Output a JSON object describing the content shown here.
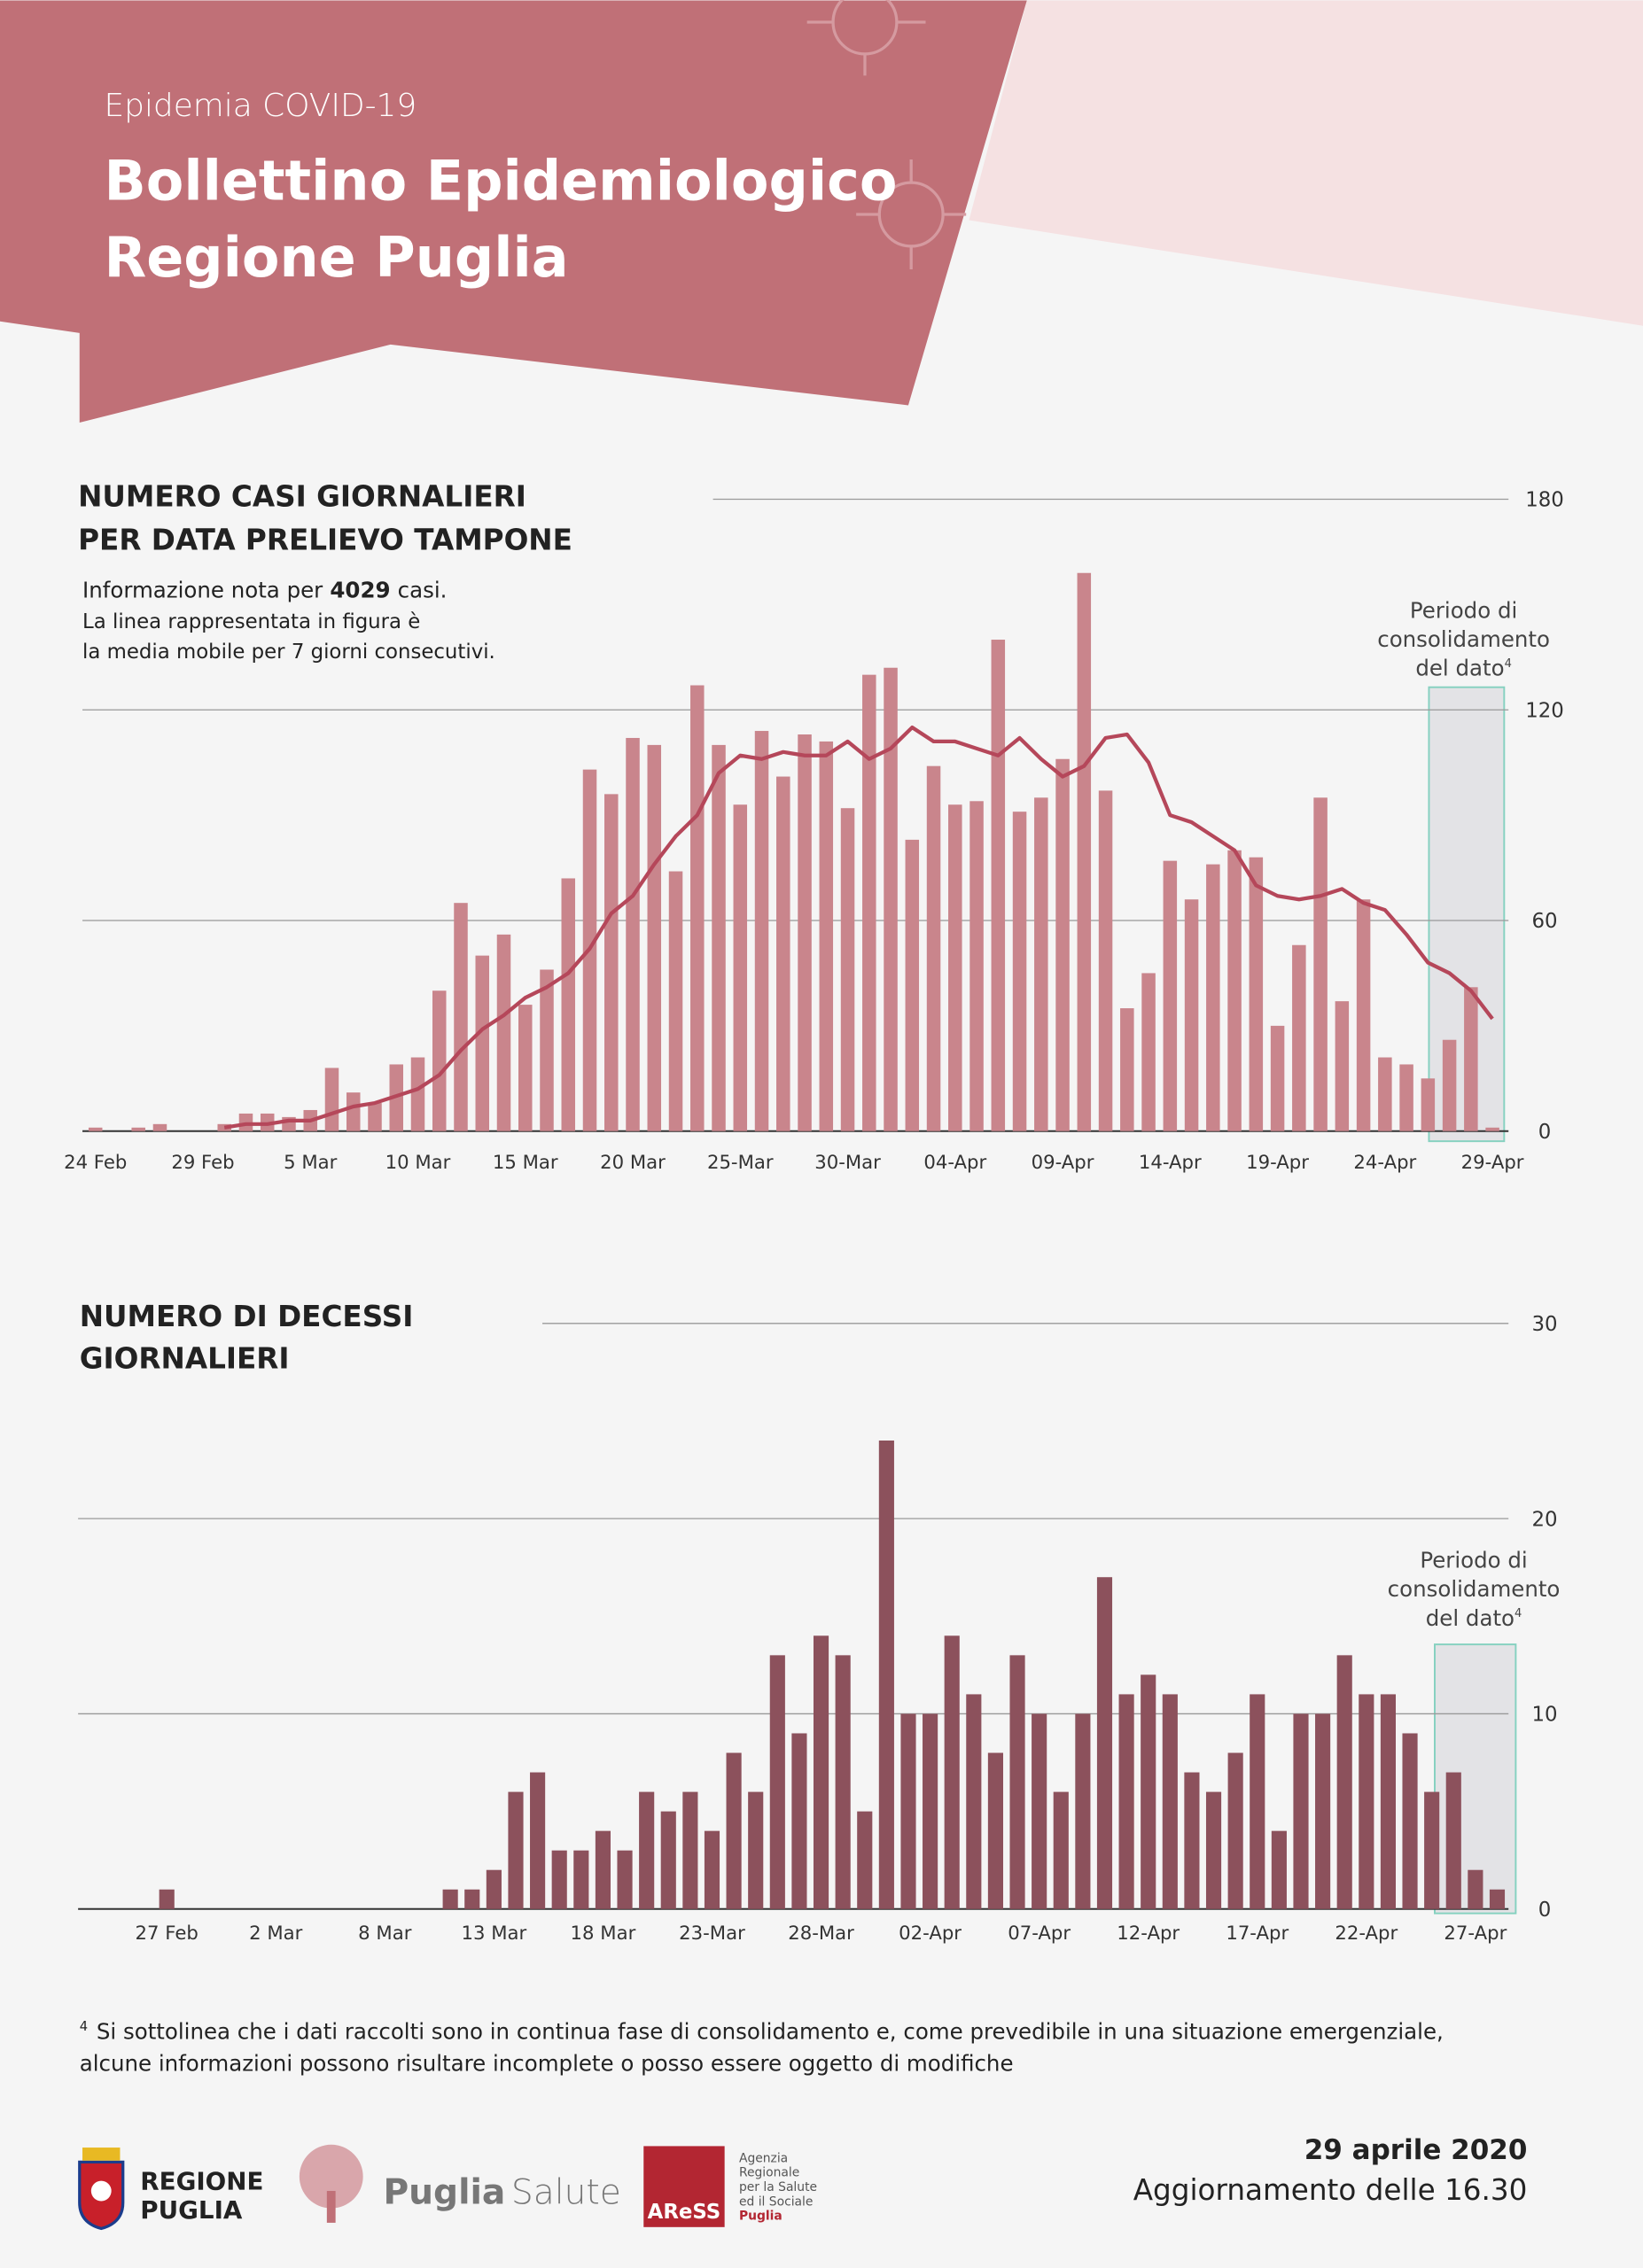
{
  "header": {
    "kicker": "Epidemia COVID-19",
    "title_lines": [
      "Bollettino Epidemiologico",
      "Regione Puglia"
    ]
  },
  "chart_data": [
    {
      "type": "bar",
      "title": [
        "NUMERO CASI GIORNALIERI",
        "PER DATA PRELIEVO TAMPONE"
      ],
      "note": {
        "prefix": "Informazione nota per",
        "count": 4029,
        "suffix": "casi.",
        "lines": [
          "La linea rappresentata in figura è",
          "la media mobile per 7 giorni consecutivi."
        ]
      },
      "annotation": {
        "lines": [
          "Periodo di",
          "consolidamento",
          "del dato"
        ],
        "sup": "4"
      },
      "categories": [
        "24 Feb",
        null,
        null,
        null,
        null,
        "29 Feb",
        null,
        null,
        null,
        null,
        "5 Mar",
        null,
        null,
        null,
        null,
        "10 Mar",
        null,
        null,
        null,
        null,
        "15 Mar",
        null,
        null,
        null,
        null,
        "20 Mar",
        null,
        null,
        null,
        null,
        "25-Mar",
        null,
        null,
        null,
        null,
        "30-Mar",
        null,
        null,
        null,
        null,
        "04-Apr",
        null,
        null,
        null,
        null,
        "09-Apr",
        null,
        null,
        null,
        null,
        "14-Apr",
        null,
        null,
        null,
        null,
        "19-Apr",
        null,
        null,
        null,
        null,
        "24-Apr",
        null,
        null,
        null,
        null,
        "29-Apr"
      ],
      "series": [
        {
          "type": "bar",
          "color": "#c9858c",
          "values": [
            1,
            0,
            1,
            2,
            0,
            0,
            2,
            5,
            5,
            4,
            6,
            18,
            11,
            8,
            19,
            21,
            40,
            65,
            50,
            56,
            36,
            46,
            72,
            103,
            96,
            112,
            110,
            74,
            127,
            110,
            93,
            114,
            101,
            113,
            111,
            92,
            130,
            132,
            83,
            104,
            93,
            94,
            140,
            91,
            95,
            106,
            159,
            97,
            35,
            45,
            77,
            66,
            76,
            80,
            78,
            30,
            53,
            95,
            37,
            66,
            21,
            19,
            15,
            26,
            41,
            1
          ]
        },
        {
          "type": "line",
          "color": "#b5475a",
          "values": [
            null,
            null,
            null,
            null,
            null,
            null,
            1,
            2,
            2,
            3,
            3,
            5,
            7,
            8,
            10,
            12,
            16,
            23,
            29,
            33,
            38,
            41,
            45,
            52,
            62,
            67,
            76,
            84,
            90,
            102,
            107,
            106,
            108,
            107,
            107,
            111,
            106,
            109,
            115,
            111,
            111,
            109,
            107,
            112,
            106,
            101,
            104,
            112,
            113,
            105,
            90,
            88,
            84,
            80,
            70,
            67,
            66,
            67,
            69,
            65,
            63,
            56,
            48,
            45,
            40,
            32
          ]
        }
      ],
      "ylim": [
        0,
        180
      ],
      "yticks": [
        0,
        60,
        120,
        180
      ],
      "grid": true
    },
    {
      "type": "bar",
      "title": [
        "NUMERO DI DECESSI",
        "GIORNALIERI"
      ],
      "annotation": {
        "lines": [
          "Periodo di",
          "consolidamento",
          "del dato"
        ],
        "sup": "4"
      },
      "categories": [
        null,
        null,
        null,
        null,
        "27 Feb",
        null,
        null,
        null,
        null,
        "2 Mar",
        null,
        null,
        null,
        null,
        "8 Mar",
        null,
        null,
        null,
        null,
        "13 Mar",
        null,
        null,
        null,
        null,
        "18 Mar",
        null,
        null,
        null,
        null,
        "23-Mar",
        null,
        null,
        null,
        null,
        "28-Mar",
        null,
        null,
        null,
        null,
        "02-Apr",
        null,
        null,
        null,
        null,
        "07-Apr",
        null,
        null,
        null,
        null,
        "12-Apr",
        null,
        null,
        null,
        null,
        "17-Apr",
        null,
        null,
        null,
        null,
        "22-Apr",
        null,
        null,
        null,
        null,
        "27-Apr",
        null
      ],
      "series": [
        {
          "type": "bar",
          "color": "#8c515c",
          "values": [
            0,
            0,
            0,
            0,
            1,
            0,
            0,
            0,
            0,
            0,
            0,
            0,
            0,
            0,
            0,
            0,
            0,
            1,
            1,
            2,
            6,
            7,
            3,
            3,
            4,
            3,
            6,
            5,
            6,
            4,
            8,
            6,
            13,
            9,
            14,
            13,
            5,
            24,
            10,
            10,
            14,
            11,
            8,
            13,
            10,
            6,
            10,
            17,
            11,
            12,
            11,
            7,
            6,
            8,
            11,
            4,
            10,
            10,
            13,
            11,
            11,
            9,
            6,
            7,
            2,
            1
          ]
        }
      ],
      "ylim": [
        0,
        30
      ],
      "yticks": [
        0,
        10,
        20,
        30
      ],
      "grid": true
    }
  ],
  "footnote": {
    "marker": "4",
    "lines": [
      "Si sottolinea che i dati raccolti sono in continua fase di consolidamento e, come prevedibile in una situazione emergenziale,",
      "alcune informazioni possono risultare incomplete o posso essere oggetto di modifiche"
    ]
  },
  "footer": {
    "region": [
      "REGIONE",
      "PUGLIA"
    ],
    "salute": [
      "Puglia",
      "Salute"
    ],
    "aress": "AReSS",
    "aress_text": [
      "Agenzia",
      "Regionale",
      "per la Salute",
      "ed il Sociale",
      "Puglia"
    ],
    "date": "29 aprile 2020",
    "update": "Aggiornamento delle 16.30"
  }
}
